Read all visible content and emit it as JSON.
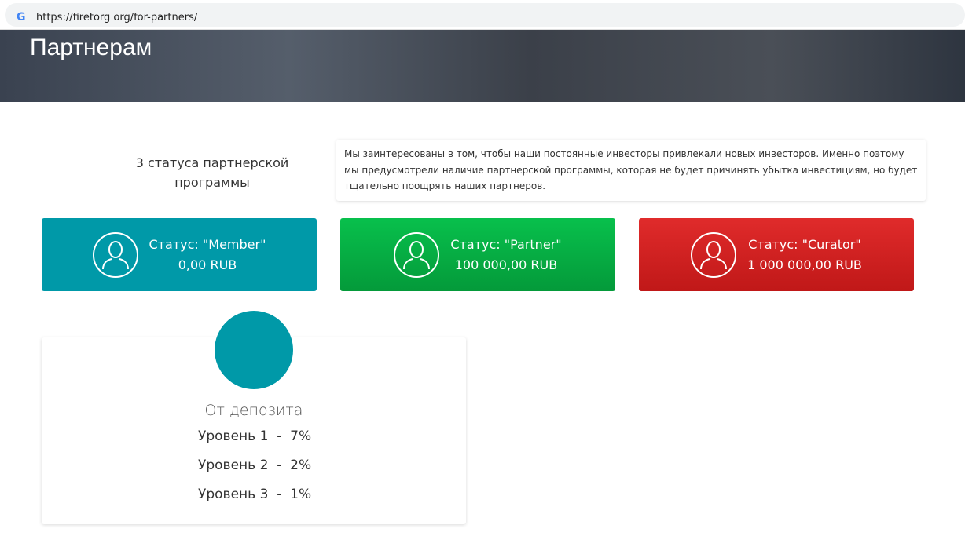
{
  "browser": {
    "url": "https://firetorg org/for-partners/"
  },
  "hero": {
    "title": "Партнерам"
  },
  "intro": {
    "heading": "3 статуса партнерской программы",
    "description": "Мы заинтересованы в том, чтобы наши постоянные инвесторы привлекали новых инвесторов. Именно поэтому мы предусмотрели наличие партнерской программы, которая не будет причинять убытка инвестициям, но будет тщательно поощрять наших партнеров."
  },
  "statuses": [
    {
      "title": "Статус: \"Member\"",
      "amount": "0,00 RUB",
      "color": "#0099a8"
    },
    {
      "title": "Статус: \"Partner\"",
      "amount": "100 000,00 RUB",
      "color": "#06b847"
    },
    {
      "title": "Статус: \"Curator\"",
      "amount": "1 000 000,00 RUB",
      "color": "#d42020"
    }
  ],
  "deposit": {
    "title": "От депозита",
    "levels": [
      "Уровень 1  -  7%",
      "Уровень 2  -  2%",
      "Уровень 3  -  1%"
    ]
  }
}
